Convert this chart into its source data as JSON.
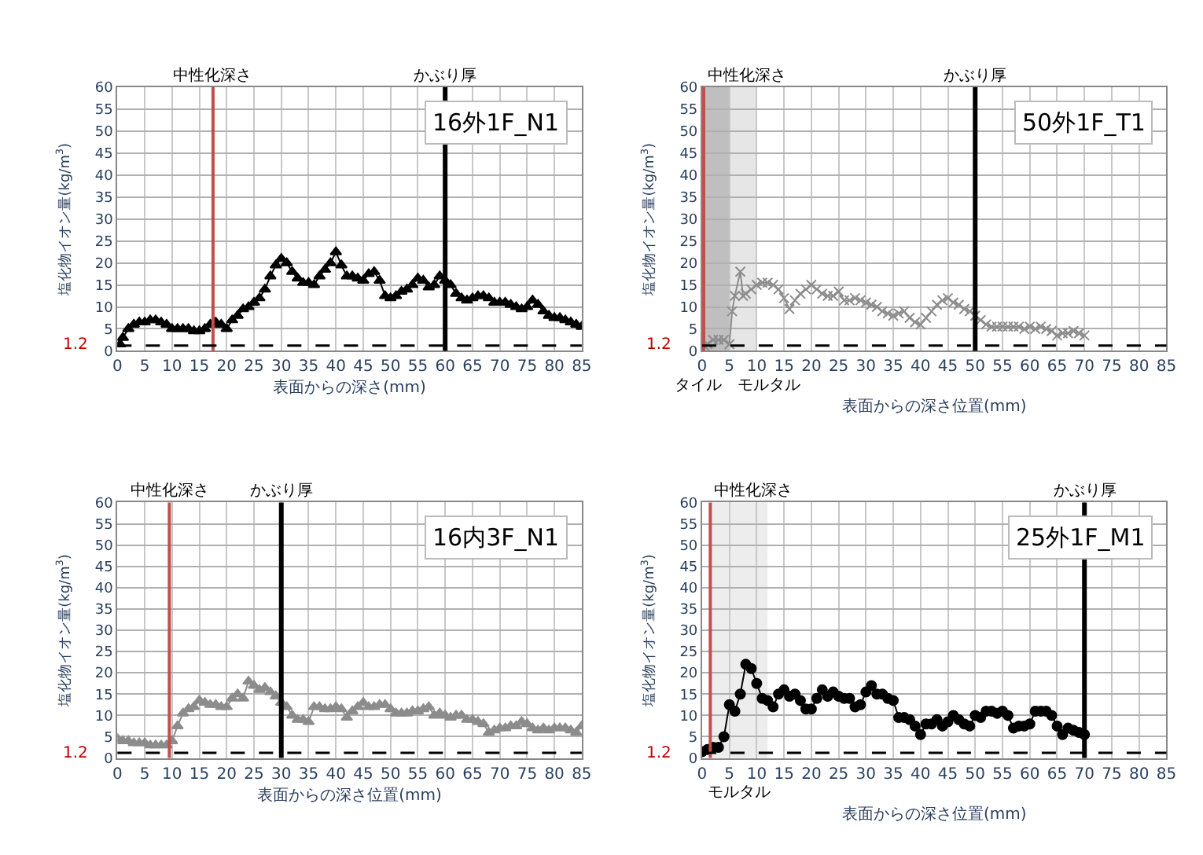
{
  "chart_data": [
    {
      "type": "line",
      "marker": "triangle",
      "line_style": "solid",
      "grid": true,
      "xlabel": "表面からの深さ(mm)",
      "ylabel": "塩化物イオン量(kg/m$^{3}$)",
      "xlim": [
        0,
        85
      ],
      "xticks": [
        0,
        5,
        10,
        15,
        20,
        25,
        30,
        35,
        40,
        45,
        50,
        55,
        60,
        65,
        70,
        75,
        80,
        85
      ],
      "ylim": [
        0,
        60
      ],
      "yticks": [
        0,
        5,
        10,
        15,
        20,
        25,
        30,
        35,
        40,
        45,
        50,
        55,
        60
      ],
      "annotations": [
        "16外1F_N1"
      ],
      "ref_lines": [
        {
          "axis": "x",
          "value": 17.5,
          "label": "中性化深さ",
          "color": "#c0504d"
        },
        {
          "axis": "x",
          "value": 60,
          "label": "かぶり厚",
          "color": "#000000"
        },
        {
          "axis": "y",
          "value": 1.2,
          "label": "1.2",
          "color": "#000000",
          "line_style": "dashed"
        }
      ],
      "series": [
        {
          "color": "#000000",
          "x": [
            0.5,
            1,
            2,
            3,
            4,
            5,
            6,
            7,
            8,
            9,
            10,
            11,
            12,
            13,
            14,
            15,
            16,
            17,
            18,
            19,
            20,
            21,
            22,
            23,
            24,
            25,
            26,
            27,
            28,
            29,
            30,
            31,
            32,
            33,
            34,
            35,
            36,
            37,
            38,
            39,
            40,
            41,
            42,
            43,
            44,
            45,
            46,
            47,
            48,
            49,
            50,
            51,
            52,
            53,
            54,
            55,
            56,
            57,
            58,
            59,
            60,
            61,
            62,
            63,
            64,
            65,
            66,
            67,
            68,
            69,
            70,
            71,
            72,
            73,
            74,
            75,
            76,
            77,
            78,
            79,
            80,
            81,
            82,
            83,
            84,
            85
          ],
          "values": [
            1.5,
            3,
            5,
            6,
            6.5,
            6.5,
            7,
            7,
            6.5,
            6,
            5,
            5,
            5,
            5,
            4.5,
            4.5,
            5,
            6,
            6.5,
            6,
            5,
            7,
            8,
            9.5,
            10,
            11,
            12,
            14,
            17,
            19.5,
            21,
            20,
            18,
            16.5,
            15.5,
            15.5,
            15,
            17,
            18.5,
            20,
            22.5,
            19.5,
            17,
            17,
            16.5,
            16,
            17.5,
            18,
            16,
            12.5,
            12,
            12.5,
            13.5,
            14,
            15,
            16.5,
            16,
            14.5,
            15,
            17,
            16,
            15,
            13,
            12,
            11.5,
            12,
            12.5,
            12.5,
            12,
            11,
            11,
            11,
            10.5,
            10,
            9.5,
            10,
            11.5,
            10.5,
            9,
            8,
            7.5,
            7.5,
            7,
            6.5,
            6,
            5.5
          ]
        }
      ]
    },
    {
      "type": "line",
      "marker": "cross",
      "line_style": "solid",
      "grid": true,
      "xlabel": "表面からの深さ位置(mm)",
      "ylabel": "塩化物イオン量(kg/m$^{3}$)",
      "xlim": [
        0,
        85
      ],
      "xticks": [
        0,
        5,
        10,
        15,
        20,
        25,
        30,
        35,
        40,
        45,
        50,
        55,
        60,
        65,
        70,
        75,
        80,
        85
      ],
      "ylim": [
        0,
        60
      ],
      "yticks": [
        0,
        5,
        10,
        15,
        20,
        25,
        30,
        35,
        40,
        45,
        50,
        55,
        60
      ],
      "annotations": [
        "50外1F_T1"
      ],
      "bands": [
        {
          "axis": "x",
          "from": 0.5,
          "to": 5,
          "label": "タイル",
          "color": "#bfbfbf"
        },
        {
          "axis": "x",
          "from": 5,
          "to": 10,
          "label": "モルタル",
          "color": "#e6e6e6"
        }
      ],
      "ref_lines": [
        {
          "axis": "x",
          "value": 0.3,
          "label": "中性化深さ",
          "color": "#c0504d"
        },
        {
          "axis": "x",
          "value": 50,
          "label": "かぶり厚",
          "color": "#000000"
        },
        {
          "axis": "y",
          "value": 1.2,
          "label": "1.2",
          "color": "#000000",
          "line_style": "dashed"
        }
      ],
      "series": [
        {
          "color": "#8c8c8c",
          "x": [
            0.5,
            1,
            2,
            3,
            4,
            5,
            5.5,
            6,
            7,
            7.5,
            8,
            9,
            10,
            11,
            12,
            13,
            14,
            15,
            16,
            17,
            18,
            19,
            20,
            21,
            22,
            23,
            24,
            25,
            26,
            27,
            28,
            29,
            30,
            31,
            32,
            33,
            34,
            35,
            36,
            37,
            38,
            39,
            40,
            41,
            42,
            43,
            44,
            45,
            46,
            47,
            48,
            49,
            50,
            51,
            52,
            53,
            54,
            55,
            56,
            57,
            58,
            59,
            60,
            61,
            62,
            63,
            64,
            65,
            66,
            67,
            68,
            69,
            70
          ],
          "values": [
            1,
            1.5,
            2.5,
            2.5,
            2.5,
            1.5,
            9,
            12.5,
            18,
            12.5,
            13,
            14,
            15,
            15.5,
            15.5,
            15,
            14,
            12,
            9.5,
            11.5,
            13,
            14,
            15,
            14,
            13,
            12.5,
            12.5,
            13.5,
            11.5,
            11.5,
            12,
            11.5,
            11,
            10.5,
            10,
            9,
            8.5,
            8,
            8.5,
            9,
            7.5,
            6.5,
            6,
            7.5,
            9,
            10.5,
            11.5,
            12,
            11,
            10.5,
            9.5,
            9,
            8,
            7,
            6,
            5.5,
            5.5,
            5.5,
            5.5,
            5.5,
            5.5,
            5,
            5.5,
            5,
            5.5,
            5,
            4.5,
            3.5,
            4,
            4,
            4.5,
            4,
            3.5
          ]
        }
      ]
    },
    {
      "type": "line",
      "marker": "triangle",
      "line_style": "solid",
      "grid": true,
      "xlabel": "表面からの深さ位置(mm)",
      "ylabel": "塩化物イオン量(kg/m$^{3}$)",
      "xlim": [
        0,
        85
      ],
      "xticks": [
        0,
        5,
        10,
        15,
        20,
        25,
        30,
        35,
        40,
        45,
        50,
        55,
        60,
        65,
        70,
        75,
        80,
        85
      ],
      "ylim": [
        0,
        60
      ],
      "yticks": [
        0,
        5,
        10,
        15,
        20,
        25,
        30,
        35,
        40,
        45,
        50,
        55,
        60
      ],
      "annotations": [
        "16内3F_N1"
      ],
      "ref_lines": [
        {
          "axis": "x",
          "value": 9.5,
          "label": "中性化深さ",
          "color": "#c0504d"
        },
        {
          "axis": "x",
          "value": 30,
          "label": "かぶり厚",
          "color": "#000000"
        },
        {
          "axis": "y",
          "value": 1.2,
          "label": "1.2",
          "color": "#000000",
          "line_style": "dashed"
        }
      ],
      "series": [
        {
          "color": "#8c8c8c",
          "x": [
            0,
            1,
            2,
            3,
            4,
            5,
            6,
            7,
            8,
            9,
            10,
            11,
            12,
            13,
            14,
            15,
            16,
            17,
            18,
            19,
            20,
            21,
            22,
            23,
            24,
            25,
            26,
            27,
            28,
            29,
            30,
            31,
            32,
            33,
            34,
            35,
            36,
            37,
            38,
            39,
            40,
            41,
            42,
            43,
            44,
            45,
            46,
            47,
            48,
            49,
            50,
            51,
            52,
            53,
            54,
            55,
            56,
            57,
            58,
            59,
            60,
            61,
            62,
            63,
            64,
            65,
            66,
            67,
            68,
            69,
            70,
            71,
            72,
            73,
            74,
            75,
            76,
            77,
            78,
            79,
            80,
            81,
            82,
            83,
            84,
            85
          ],
          "values": [
            4.5,
            4,
            4,
            3.5,
            3.5,
            3.5,
            3,
            3,
            3,
            3,
            4,
            7.5,
            10.5,
            11.5,
            12,
            13.5,
            13,
            12.5,
            12.5,
            12,
            12,
            14,
            15,
            14,
            18,
            17,
            16,
            16.5,
            15.5,
            14.5,
            13,
            12,
            10,
            9,
            9,
            8.5,
            12,
            12,
            11.5,
            11.5,
            12,
            11.5,
            9.5,
            11,
            12,
            13,
            12,
            12,
            12.5,
            12.5,
            11.5,
            10.5,
            10.5,
            10.5,
            11,
            11,
            11.5,
            12,
            10,
            10.5,
            10,
            9.5,
            10,
            10,
            9,
            9,
            8.5,
            8,
            6,
            6.5,
            7,
            7,
            7.5,
            7.5,
            8.5,
            8,
            7,
            6.5,
            7,
            6.5,
            7,
            7,
            7,
            6.5,
            6,
            7.5
          ]
        }
      ]
    },
    {
      "type": "line",
      "marker": "circle",
      "line_style": "solid",
      "grid": true,
      "xlabel": "表面からの深さ位置(mm)",
      "ylabel": "塩化物イオン量(kg/m$^{3}$)",
      "xlim": [
        0,
        85
      ],
      "xticks": [
        0,
        5,
        10,
        15,
        20,
        25,
        30,
        35,
        40,
        45,
        50,
        55,
        60,
        65,
        70,
        75,
        80,
        85
      ],
      "ylim": [
        0,
        60
      ],
      "yticks": [
        0,
        5,
        10,
        15,
        20,
        25,
        30,
        35,
        40,
        45,
        50,
        55,
        60
      ],
      "annotations": [
        "25外1F_M1"
      ],
      "bands": [
        {
          "axis": "x",
          "from": 1.5,
          "to": 12,
          "label": "モルタル",
          "color": "#ededed"
        }
      ],
      "ref_lines": [
        {
          "axis": "x",
          "value": 1.5,
          "label": "中性化深さ",
          "color": "#c0504d"
        },
        {
          "axis": "x",
          "value": 70,
          "label": "かぶり厚",
          "color": "#000000"
        },
        {
          "axis": "y",
          "value": 1.2,
          "label": "1.2",
          "color": "#000000",
          "line_style": "dashed"
        }
      ],
      "series": [
        {
          "color": "#000000",
          "x": [
            0,
            1,
            2,
            3,
            4,
            5,
            6,
            7,
            8,
            9,
            10,
            11,
            12,
            13,
            14,
            15,
            16,
            17,
            18,
            19,
            20,
            21,
            22,
            23,
            24,
            25,
            26,
            27,
            28,
            29,
            30,
            31,
            32,
            33,
            34,
            35,
            36,
            37,
            38,
            39,
            40,
            41,
            42,
            43,
            44,
            45,
            46,
            47,
            48,
            49,
            50,
            51,
            52,
            53,
            54,
            55,
            56,
            57,
            58,
            59,
            60,
            61,
            62,
            63,
            64,
            65,
            66,
            67,
            68,
            69,
            70
          ],
          "values": [
            1.5,
            2,
            2.5,
            2.5,
            5,
            12.5,
            11,
            15,
            22,
            21,
            17.5,
            14,
            13.5,
            12,
            15,
            16,
            14.5,
            15,
            13.5,
            11.5,
            11.5,
            14,
            16,
            14.5,
            15.5,
            14.5,
            14,
            14,
            12,
            12.5,
            15.5,
            17,
            15,
            15,
            14,
            13.5,
            9.5,
            9.5,
            9,
            7.5,
            5.5,
            8,
            8,
            9,
            7.5,
            8.5,
            10,
            9,
            8,
            7.5,
            10,
            9.5,
            11,
            11,
            10.5,
            11,
            10,
            7,
            7.5,
            7.5,
            8,
            11,
            11,
            11,
            10,
            7.5,
            5.5,
            7,
            6.5,
            6,
            5.5
          ]
        }
      ]
    }
  ]
}
